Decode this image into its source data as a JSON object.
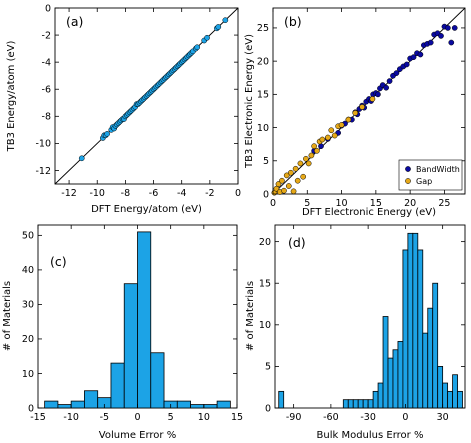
{
  "chart_data": [
    {
      "type": "scatter",
      "panel_label": "(a)",
      "xlabel": "DFT Energy/atom (eV)",
      "ylabel": "TB3 Energy/atom (eV)",
      "xlim": [
        -13,
        0
      ],
      "ylim": [
        -13,
        0
      ],
      "xticks": [
        -12,
        -10,
        -8,
        -6,
        -4,
        -2,
        0
      ],
      "yticks": [
        -12,
        -10,
        -8,
        -6,
        -4,
        -2,
        0
      ],
      "reference_line": "y = x",
      "series": [
        {
          "color": "#1ca3e6",
          "x": [
            -11.1,
            -9.6,
            -9.5,
            -9.4,
            -9.3,
            -9.0,
            -8.9,
            -8.8,
            -8.7,
            -8.6,
            -8.5,
            -8.4,
            -8.3,
            -8.2,
            -8.1,
            -8.0,
            -7.9,
            -7.8,
            -7.7,
            -7.6,
            -7.5,
            -7.4,
            -7.3,
            -7.2,
            -7.1,
            -7.0,
            -6.9,
            -6.8,
            -6.7,
            -6.6,
            -6.5,
            -6.4,
            -6.3,
            -6.2,
            -6.1,
            -6.0,
            -5.9,
            -5.8,
            -5.7,
            -5.6,
            -5.5,
            -5.4,
            -5.3,
            -5.2,
            -5.1,
            -5.0,
            -4.9,
            -4.8,
            -4.7,
            -4.6,
            -4.5,
            -4.4,
            -4.3,
            -4.2,
            -4.1,
            -4.0,
            -3.9,
            -3.8,
            -3.7,
            -3.6,
            -3.5,
            -3.4,
            -3.3,
            -3.2,
            -3.0,
            -2.9,
            -2.4,
            -2.2,
            -1.5,
            -1.4,
            -0.9
          ],
          "y": [
            -11.1,
            -9.6,
            -9.4,
            -9.4,
            -9.3,
            -9.0,
            -8.8,
            -8.9,
            -8.7,
            -8.6,
            -8.5,
            -8.4,
            -8.3,
            -8.2,
            -8.2,
            -8.0,
            -7.9,
            -7.8,
            -7.7,
            -7.6,
            -7.5,
            -7.4,
            -7.3,
            -7.1,
            -7.1,
            -7.0,
            -6.9,
            -6.8,
            -6.7,
            -6.6,
            -6.5,
            -6.4,
            -6.3,
            -6.2,
            -6.1,
            -6.0,
            -5.9,
            -5.8,
            -5.7,
            -5.6,
            -5.5,
            -5.4,
            -5.3,
            -5.2,
            -5.1,
            -5.0,
            -4.9,
            -4.8,
            -4.7,
            -4.6,
            -4.5,
            -4.4,
            -4.3,
            -4.2,
            -4.1,
            -4.0,
            -3.9,
            -3.8,
            -3.7,
            -3.6,
            -3.5,
            -3.4,
            -3.3,
            -3.2,
            -3.0,
            -2.9,
            -2.4,
            -2.2,
            -1.5,
            -1.4,
            -0.9
          ]
        }
      ]
    },
    {
      "type": "scatter",
      "panel_label": "(b)",
      "xlabel": "DFT Electronic Energy (eV)",
      "ylabel": "TB3 Electronic Energy (eV)",
      "xlim": [
        0,
        28
      ],
      "ylim": [
        0,
        28
      ],
      "xticks": [
        0,
        5,
        10,
        15,
        20,
        25
      ],
      "yticks": [
        0,
        5,
        10,
        15,
        20,
        25
      ],
      "reference_line": "y = x",
      "legend_position": "lower-right",
      "series": [
        {
          "name": "BandWidth",
          "color": "#0a0aa0",
          "x": [
            6.0,
            7.0,
            8.0,
            9.5,
            10.0,
            10.5,
            11.0,
            11.5,
            12.0,
            12.3,
            12.6,
            13.0,
            13.3,
            13.6,
            14.0,
            14.3,
            14.6,
            15.0,
            15.3,
            15.6,
            16.0,
            16.5,
            17.0,
            17.5,
            18.0,
            18.5,
            19.0,
            19.5,
            20.0,
            20.5,
            21.0,
            21.5,
            22.0,
            22.5,
            23.0,
            23.5,
            24.0,
            24.5,
            25.0,
            25.5,
            26.0,
            26.5
          ],
          "y": [
            6.5,
            7.2,
            8.3,
            9.2,
            10.3,
            10.6,
            11.2,
            11.2,
            12.3,
            12.0,
            12.8,
            13.3,
            13.0,
            13.9,
            14.3,
            14.0,
            15.0,
            15.2,
            15.0,
            15.9,
            16.4,
            16.0,
            17.0,
            17.8,
            18.2,
            18.8,
            19.2,
            19.5,
            20.4,
            20.6,
            21.2,
            21.0,
            22.4,
            22.6,
            22.8,
            24.0,
            24.2,
            23.8,
            25.2,
            25.0,
            22.8,
            25.0
          ]
        },
        {
          "name": "Gap",
          "color": "#e6a817",
          "x": [
            0.2,
            0.5,
            0.8,
            1.0,
            1.3,
            1.6,
            2.0,
            2.3,
            2.6,
            3.0,
            3.3,
            3.6,
            4.0,
            4.4,
            4.8,
            5.2,
            5.6,
            6.0,
            6.4,
            6.8,
            7.2,
            8.0,
            8.5,
            9.0,
            9.5,
            10.0,
            11.0,
            12.0,
            13.0,
            14.5
          ],
          "y": [
            0.2,
            0.8,
            1.5,
            0.3,
            2.0,
            0.5,
            2.8,
            1.2,
            3.2,
            0.4,
            3.8,
            2.0,
            4.6,
            2.6,
            5.3,
            4.6,
            5.8,
            7.2,
            6.5,
            7.9,
            8.2,
            8.5,
            9.6,
            8.8,
            10.2,
            10.4,
            11.2,
            12.2,
            13.1,
            14.3
          ]
        }
      ]
    },
    {
      "type": "bar",
      "panel_label": "(c)",
      "xlabel": "Volume Error %",
      "ylabel": "# of Materials",
      "xlim": [
        -15,
        15
      ],
      "ylim": [
        0,
        53
      ],
      "xticks": [
        -15,
        -10,
        -5,
        0,
        5,
        10,
        15
      ],
      "yticks": [
        0,
        10,
        20,
        30,
        40,
        50
      ],
      "bin_width": 2,
      "bin_starts": [
        -14,
        -12,
        -10,
        -8,
        -6,
        -4,
        -2,
        0,
        2,
        4,
        6,
        8,
        10,
        12
      ],
      "values": [
        2,
        1,
        2,
        5,
        3,
        13,
        36,
        51,
        16,
        2,
        2,
        1,
        1,
        2
      ],
      "color": "#1ca3e6"
    },
    {
      "type": "bar",
      "panel_label": "(d)",
      "xlabel": "Bulk Modulus Error %",
      "ylabel": "# of Materials",
      "xlim": [
        -105,
        48
      ],
      "ylim": [
        0,
        22
      ],
      "xticks": [
        -90,
        -60,
        -30,
        0,
        30
      ],
      "yticks": [
        0,
        5,
        10,
        15,
        20
      ],
      "bin_width": 4,
      "bin_starts": [
        -102,
        -50,
        -46,
        -42,
        -38,
        -34,
        -30,
        -26,
        -22,
        -18,
        -14,
        -10,
        -6,
        -2,
        2,
        6,
        10,
        14,
        18,
        22,
        26,
        30,
        34,
        38,
        42
      ],
      "values": [
        2,
        1,
        1,
        1,
        1,
        1,
        1,
        2,
        3,
        11,
        6,
        7,
        8,
        19,
        21,
        21,
        19,
        9,
        12,
        15,
        5,
        3,
        2,
        4,
        2
      ],
      "color": "#1ca3e6"
    }
  ]
}
